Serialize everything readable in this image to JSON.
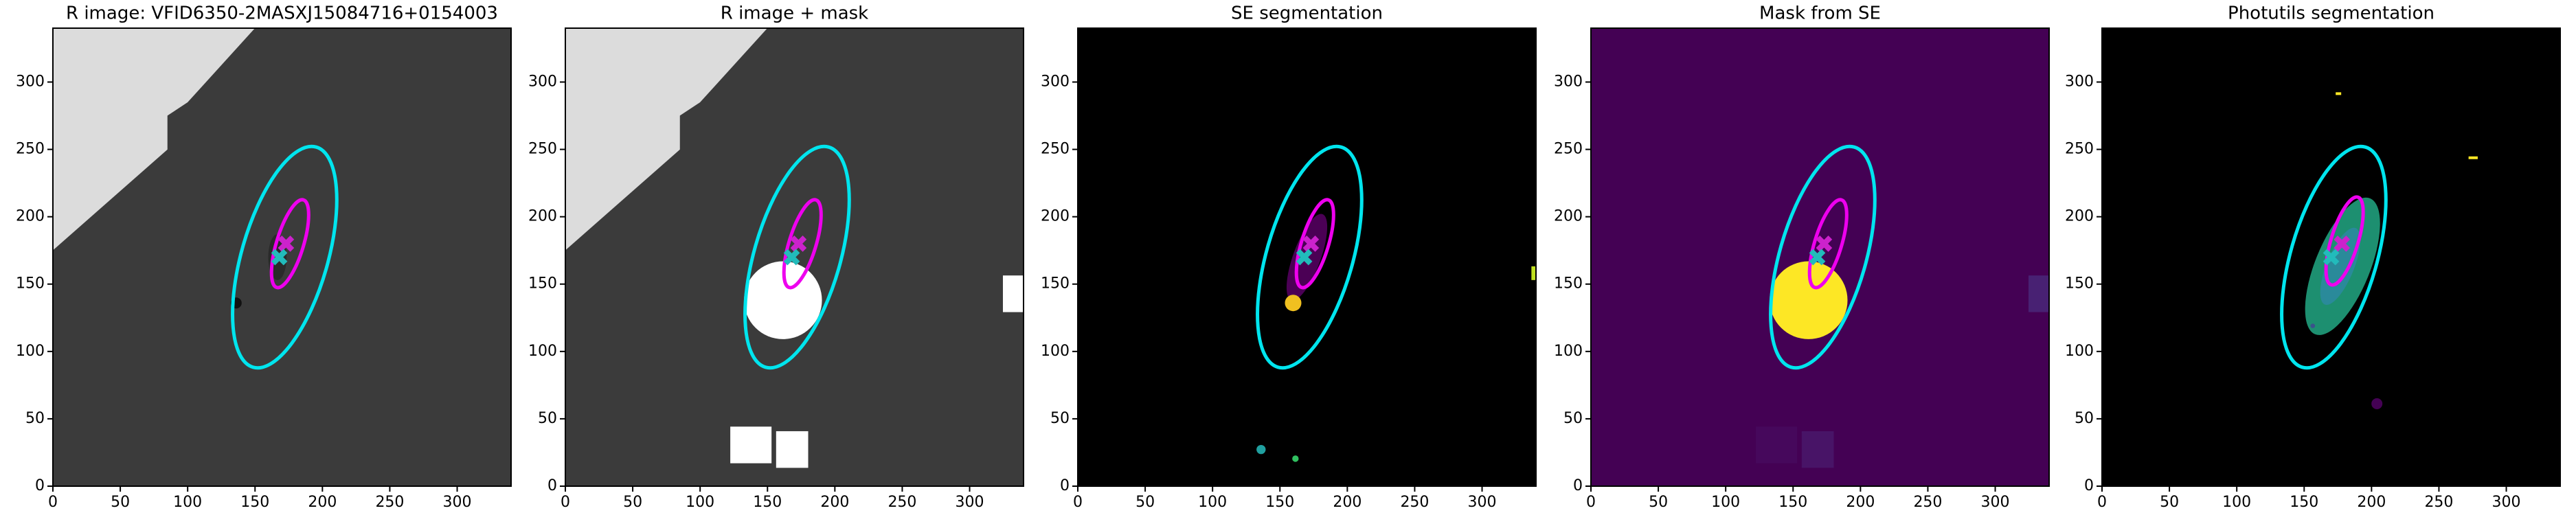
{
  "chart_data": [
    {
      "type": "image",
      "title": "R image: VFID6350-2MASXJ15084716+0154003",
      "background": "#3b3b3b",
      "xlim": [
        0,
        340
      ],
      "ylim": [
        0,
        340
      ],
      "xticks": [
        0,
        50,
        100,
        150,
        200,
        250,
        300
      ],
      "yticks": [
        0,
        50,
        100,
        150,
        200,
        250,
        300
      ],
      "ellipses": [
        {
          "color": "#00e5ee",
          "x": 172,
          "y": 170,
          "a": 85,
          "b": 32,
          "angle": 74
        },
        {
          "color": "#ee00ee",
          "x": 176,
          "y": 180,
          "a": 34,
          "b": 10,
          "angle": 73
        }
      ],
      "markers": [
        {
          "color": "#cc22cc",
          "x": 173,
          "y": 180
        },
        {
          "color": "#22bbbb",
          "x": 168,
          "y": 170
        }
      ]
    },
    {
      "type": "image",
      "title": "R image + mask",
      "background": "#3b3b3b",
      "xlim": [
        0,
        340
      ],
      "ylim": [
        0,
        340
      ],
      "xticks": [
        0,
        50,
        100,
        150,
        200,
        250,
        300
      ],
      "yticks": [
        0,
        50,
        100,
        150,
        200,
        250,
        300
      ],
      "ellipses": [
        {
          "color": "#00e5ee",
          "x": 172,
          "y": 170,
          "a": 85,
          "b": 32,
          "angle": 74
        },
        {
          "color": "#ee00ee",
          "x": 176,
          "y": 180,
          "a": 34,
          "b": 10,
          "angle": 73
        }
      ],
      "markers": [
        {
          "color": "#cc22cc",
          "x": 173,
          "y": 180
        },
        {
          "color": "#22bbbb",
          "x": 168,
          "y": 170
        }
      ]
    },
    {
      "type": "image",
      "title": "SE segmentation",
      "background": "#000000",
      "xlim": [
        0,
        340
      ],
      "ylim": [
        0,
        340
      ],
      "xticks": [
        0,
        50,
        100,
        150,
        200,
        250,
        300
      ],
      "yticks": [
        0,
        50,
        100,
        150,
        200,
        250,
        300
      ],
      "ellipses": [
        {
          "color": "#00e5ee",
          "x": 172,
          "y": 170,
          "a": 85,
          "b": 32,
          "angle": 74
        },
        {
          "color": "#ee00ee",
          "x": 176,
          "y": 180,
          "a": 34,
          "b": 10,
          "angle": 73
        }
      ],
      "markers": [
        {
          "color": "#cc22cc",
          "x": 173,
          "y": 180
        },
        {
          "color": "#22bbbb",
          "x": 168,
          "y": 170
        }
      ]
    },
    {
      "type": "image",
      "title": "Mask from SE",
      "background": "#440154",
      "xlim": [
        0,
        340
      ],
      "ylim": [
        0,
        340
      ],
      "xticks": [
        0,
        50,
        100,
        150,
        200,
        250,
        300
      ],
      "yticks": [
        0,
        50,
        100,
        150,
        200,
        250,
        300
      ],
      "ellipses": [
        {
          "color": "#00e5ee",
          "x": 172,
          "y": 170,
          "a": 85,
          "b": 32,
          "angle": 74
        },
        {
          "color": "#ee00ee",
          "x": 176,
          "y": 180,
          "a": 34,
          "b": 10,
          "angle": 73
        }
      ],
      "markers": [
        {
          "color": "#cc22cc",
          "x": 173,
          "y": 180
        },
        {
          "color": "#22bbbb",
          "x": 168,
          "y": 170
        }
      ]
    },
    {
      "type": "image",
      "title": "Photutils segmentation",
      "background": "#000000",
      "xlim": [
        0,
        340
      ],
      "ylim": [
        0,
        340
      ],
      "xticks": [
        0,
        50,
        100,
        150,
        200,
        250,
        300
      ],
      "yticks": [
        0,
        50,
        100,
        150,
        200,
        250,
        300
      ],
      "ellipses": [
        {
          "color": "#00e5ee",
          "x": 172,
          "y": 170,
          "a": 85,
          "b": 32,
          "angle": 74
        },
        {
          "color": "#ee00ee",
          "x": 180,
          "y": 182,
          "a": 34,
          "b": 10,
          "angle": 73
        }
      ],
      "markers": [
        {
          "color": "#cc22cc",
          "x": 178,
          "y": 180
        },
        {
          "color": "#22bbbb",
          "x": 170,
          "y": 170
        }
      ]
    }
  ]
}
